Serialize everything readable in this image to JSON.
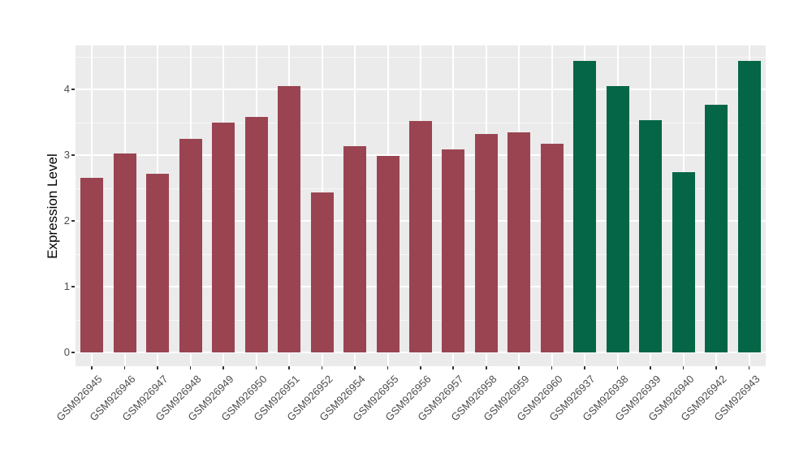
{
  "figure": {
    "background": "#FFFFFF",
    "panel_background": "#EBEBEB",
    "gridline_color": "#FFFFFF",
    "tick_mark_color": "#333333",
    "axis_text_color": "#4D4D4D",
    "axis_title_color": "#000000"
  },
  "chart_data": {
    "type": "bar",
    "title": "",
    "xlabel": "",
    "ylabel": "Expression Level",
    "categories": [
      "GSM926945",
      "GSM926946",
      "GSM926947",
      "GSM926948",
      "GSM926949",
      "GSM926950",
      "GSM926951",
      "GSM926952",
      "GSM926954",
      "GSM926955",
      "GSM926956",
      "GSM926957",
      "GSM926958",
      "GSM926959",
      "GSM926960",
      "GSM926937",
      "GSM926938",
      "GSM926939",
      "GSM926940",
      "GSM926942",
      "GSM926943"
    ],
    "values": [
      2.65,
      3.02,
      2.72,
      3.25,
      3.49,
      3.58,
      4.05,
      2.43,
      3.14,
      2.99,
      3.52,
      3.09,
      3.32,
      3.34,
      3.17,
      4.43,
      4.05,
      3.53,
      2.74,
      3.76,
      4.43
    ],
    "colors": [
      "#9A4452",
      "#9A4452",
      "#9A4452",
      "#9A4452",
      "#9A4452",
      "#9A4452",
      "#9A4452",
      "#9A4452",
      "#9A4452",
      "#9A4452",
      "#9A4452",
      "#9A4452",
      "#9A4452",
      "#9A4452",
      "#9A4452",
      "#046647",
      "#046647",
      "#046647",
      "#046647",
      "#046647",
      "#046647"
    ],
    "group_colors": {
      "left_group": "#9A4452",
      "right_group": "#046647"
    },
    "yticks": [
      0,
      1,
      2,
      3,
      4
    ],
    "yticks_minor": [
      0.5,
      1.5,
      2.5,
      3.5,
      4.5
    ],
    "ylim": [
      -0.22,
      4.64
    ],
    "grid": true,
    "legend_position": "none"
  }
}
